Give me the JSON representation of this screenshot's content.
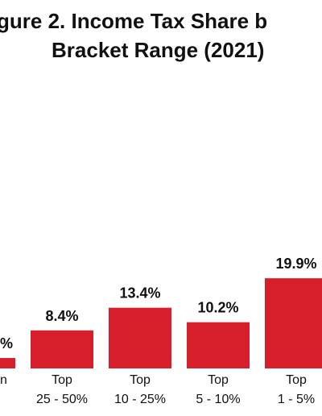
{
  "title_line1": "gure 2. Income Tax Share b",
  "title_line2": "Bracket Range (2021)",
  "colors": {
    "bar": "#d71f2b",
    "text": "#111111"
  },
  "chart_data": {
    "type": "bar",
    "title": "gure 2. Income Tax Share b Bracket Range (2021)",
    "categories": [
      {
        "line1": "n",
        "line2": ""
      },
      {
        "line1": "Top",
        "line2": "25 - 50%"
      },
      {
        "line1": "Top",
        "line2": "10 - 25%"
      },
      {
        "line1": "Top",
        "line2": "5 - 10%"
      },
      {
        "line1": "Top",
        "line2": "1 - 5%"
      }
    ],
    "values": [
      2.3,
      8.4,
      13.4,
      10.2,
      19.9
    ],
    "data_labels": [
      "%",
      "8.4%",
      "13.4%",
      "10.2%",
      "19.9%"
    ],
    "ylim": [
      0,
      40
    ],
    "grid": false
  }
}
